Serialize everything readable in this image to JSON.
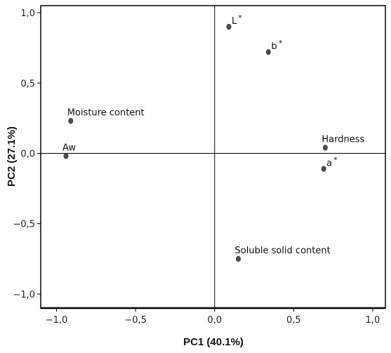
{
  "chart_data": {
    "type": "scatter",
    "title": "",
    "xlabel": "PC1 (40.1%)",
    "ylabel": "PC2  (27.1%)",
    "xlim": [
      -1.1,
      1.08
    ],
    "ylim": [
      -1.1,
      1.05
    ],
    "grid": false,
    "reference_lines": {
      "x": 0.0,
      "y": 0.0
    },
    "x_ticks": [
      {
        "value": -1.0,
        "label": "−1,0"
      },
      {
        "value": -0.5,
        "label": "−0,5"
      },
      {
        "value": 0.0,
        "label": "0,0"
      },
      {
        "value": 0.5,
        "label": "0,5"
      },
      {
        "value": 1.0,
        "label": "1,0"
      }
    ],
    "y_ticks": [
      {
        "value": 1.0,
        "label": "1,0"
      },
      {
        "value": 0.5,
        "label": "0,5"
      },
      {
        "value": 0.0,
        "label": "0,0"
      },
      {
        "value": -0.5,
        "label": "−0,5"
      },
      {
        "value": -1.0,
        "label": "−1,0"
      }
    ],
    "points": [
      {
        "label": "L",
        "sup": "*",
        "x": 0.09,
        "y": 0.9,
        "label_pos": "right"
      },
      {
        "label": "b",
        "sup": "*",
        "x": 0.34,
        "y": 0.72,
        "label_pos": "right"
      },
      {
        "label": "Moisture content",
        "sup": "",
        "x": -0.91,
        "y": 0.23,
        "label_pos": "above"
      },
      {
        "label": "Aw",
        "sup": "",
        "x": -0.94,
        "y": -0.02,
        "label_pos": "above"
      },
      {
        "label": "Hardness",
        "sup": "",
        "x": 0.7,
        "y": 0.04,
        "label_pos": "above"
      },
      {
        "label": "a",
        "sup": "*",
        "x": 0.69,
        "y": -0.11,
        "label_pos": "right"
      },
      {
        "label": "Soluble solid content",
        "sup": "",
        "x": 0.15,
        "y": -0.75,
        "label_pos": "above"
      }
    ],
    "colors": {
      "point": "#4d4d4d",
      "axis": "#000000",
      "text": "#111111"
    }
  }
}
